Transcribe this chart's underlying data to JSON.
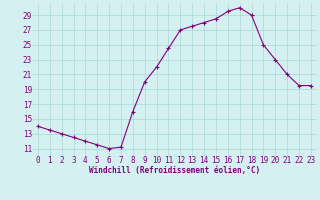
{
  "x": [
    0,
    1,
    2,
    3,
    4,
    5,
    6,
    7,
    8,
    9,
    10,
    11,
    12,
    13,
    14,
    15,
    16,
    17,
    18,
    19,
    20,
    21,
    22,
    23
  ],
  "y": [
    14.0,
    13.5,
    13.0,
    12.5,
    12.0,
    11.5,
    11.0,
    11.2,
    16.0,
    20.0,
    22.0,
    24.5,
    27.0,
    27.5,
    28.0,
    28.5,
    29.5,
    30.0,
    29.0,
    25.0,
    23.0,
    21.0,
    19.5,
    19.5
  ],
  "line_color": "#800080",
  "marker": "+",
  "marker_color": "#800080",
  "bg_color": "#d4f0f0",
  "grid_color": "#a8d8d8",
  "xlabel": "Windchill (Refroidissement éolien,°C)",
  "xlabel_color": "#800080",
  "xlabel_fontsize": 5.5,
  "tick_color": "#800080",
  "tick_fontsize": 5.5,
  "xlim": [
    -0.5,
    23.5
  ],
  "ylim": [
    10.0,
    30.5
  ],
  "yticks": [
    11,
    13,
    15,
    17,
    19,
    21,
    23,
    25,
    27,
    29
  ],
  "xticks": [
    0,
    1,
    2,
    3,
    4,
    5,
    6,
    7,
    8,
    9,
    10,
    11,
    12,
    13,
    14,
    15,
    16,
    17,
    18,
    19,
    20,
    21,
    22,
    23
  ],
  "linewidth": 0.8,
  "markersize": 3.5
}
